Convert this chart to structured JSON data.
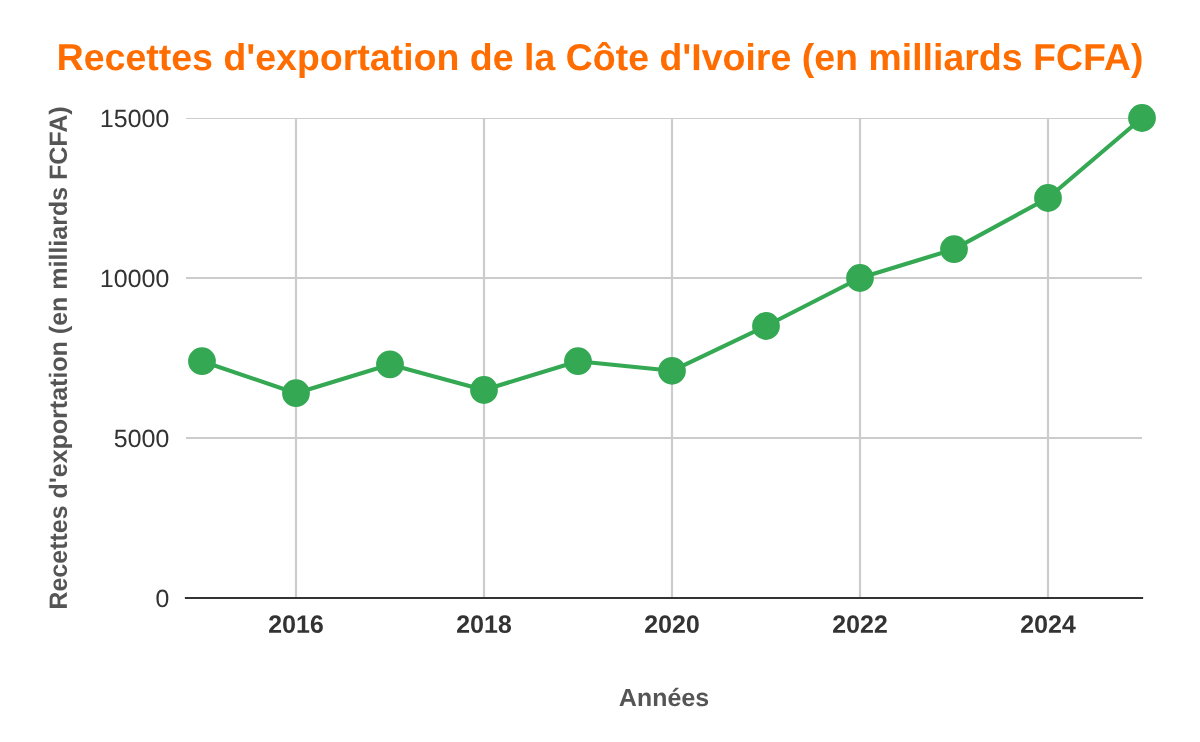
{
  "chart_data": {
    "type": "line",
    "title": "Recettes d'exportation de la Côte d'Ivoire (en milliards FCFA)",
    "xlabel": "Années",
    "ylabel": "Recettes d'exportation (en milliards FCFA)",
    "x": [
      2015,
      2016,
      2017,
      2018,
      2019,
      2020,
      2021,
      2022,
      2023,
      2024,
      2025
    ],
    "series": [
      {
        "color": "#34a853",
        "values": [
          7400,
          6400,
          7300,
          6500,
          7400,
          7100,
          8500,
          10000,
          10900,
          12500,
          15000
        ]
      }
    ],
    "xlim": [
      2014.83,
      2025
    ],
    "xticks": [
      2016,
      2018,
      2020,
      2022,
      2024
    ],
    "ylim": [
      0,
      15000
    ],
    "yticks": [
      0,
      5000,
      10000,
      15000
    ],
    "grid": true,
    "marker": "circle",
    "line_style": "solid",
    "legend": false
  }
}
